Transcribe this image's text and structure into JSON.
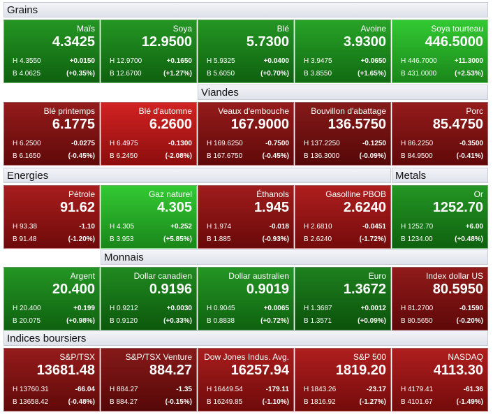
{
  "rows": [
    {
      "headers": [
        {
          "title": "Grains"
        }
      ],
      "tiles": [
        {
          "name": "Maïs",
          "last": "4.3425",
          "high": "H 4.3550",
          "change": "+0.0150",
          "low": "B 4.0625",
          "pct": "(+0.35%)",
          "color": "#168f16"
        },
        {
          "name": "Soya",
          "last": "12.9500",
          "high": "H 12.9700",
          "change": "+0.1650",
          "low": "B 12.6700",
          "pct": "(+1.27%)",
          "color": "#168f16"
        },
        {
          "name": "Blé",
          "last": "5.7300",
          "high": "H 5.9325",
          "change": "+0.0400",
          "low": "B 5.6050",
          "pct": "(+0.70%)",
          "color": "#168f16"
        },
        {
          "name": "Avoine",
          "last": "3.9300",
          "high": "H 3.9475",
          "change": "+0.0650",
          "low": "B 3.8550",
          "pct": "(+1.65%)",
          "color": "#1a9d1a"
        },
        {
          "name": "Soya tourteau",
          "last": "446.5000",
          "high": "H 446.7000",
          "change": "+11.3000",
          "low": "B 431.0000",
          "pct": "(+2.53%)",
          "color": "#26c626"
        }
      ]
    },
    {
      "headers": [
        {
          "title": "Viandes"
        }
      ],
      "tiles": [
        {
          "name": "Blé printemps",
          "last": "6.1775",
          "high": "H 6.2500",
          "change": "-0.0275",
          "low": "B 6.1650",
          "pct": "(-0.45%)",
          "color": "#8e0d0d"
        },
        {
          "name": "Blé d'automne",
          "last": "6.2600",
          "high": "H 6.4975",
          "change": "-0.1300",
          "low": "B 6.2450",
          "pct": "(-2.08%)",
          "color": "#cf1414"
        },
        {
          "name": "Veaux d'embouche",
          "last": "167.9000",
          "high": "H 169.6250",
          "change": "-0.7500",
          "low": "B 167.6750",
          "pct": "(-0.45%)",
          "color": "#8e0d0d"
        },
        {
          "name": "Bouvillon d'abattage",
          "last": "136.5750",
          "high": "H 137.2250",
          "change": "-0.1250",
          "low": "B 136.3000",
          "pct": "(-0.09%)",
          "color": "#7e0b0b"
        },
        {
          "name": "Porc",
          "last": "85.4750",
          "high": "H 86.2250",
          "change": "-0.3500",
          "low": "B 84.9500",
          "pct": "(-0.41%)",
          "color": "#8e0d0d"
        }
      ]
    },
    {
      "headers": [
        {
          "title": "Energies"
        },
        {
          "title": "Metals"
        }
      ],
      "tiles": [
        {
          "name": "Pétrole",
          "last": "91.62",
          "high": "H 93.38",
          "change": "-1.10",
          "low": "B 91.48",
          "pct": "(-1.20%)",
          "color": "#a30f0f"
        },
        {
          "name": "Gaz naturel",
          "last": "4.305",
          "high": "H 4.305",
          "change": "+0.252",
          "low": "B 3.953",
          "pct": "(+5.85%)",
          "color": "#26c626"
        },
        {
          "name": "Éthanols",
          "last": "1.945",
          "high": "H 1.974",
          "change": "-0.018",
          "low": "B 1.885",
          "pct": "(-0.93%)",
          "color": "#9a0e0e"
        },
        {
          "name": "Gasolline PBOB",
          "last": "2.6240",
          "high": "H 2.6810",
          "change": "-0.0451",
          "low": "B 2.6240",
          "pct": "(-1.72%)",
          "color": "#aa1010"
        },
        {
          "name": "Or",
          "last": "1252.70",
          "high": "H 1252.70",
          "change": "+6.00",
          "low": "B 1234.00",
          "pct": "(+0.48%)",
          "color": "#168f16"
        }
      ]
    },
    {
      "headers": [
        {
          "title": "Monnais"
        }
      ],
      "tiles": [
        {
          "name": "Argent",
          "last": "20.400",
          "high": "H 20.400",
          "change": "+0.199",
          "low": "B 20.075",
          "pct": "(+0.98%)",
          "color": "#168f16"
        },
        {
          "name": "Dollar canadien",
          "last": "0.9196",
          "high": "H 0.9212",
          "change": "+0.0030",
          "low": "B 0.9120",
          "pct": "(+0.33%)",
          "color": "#128212"
        },
        {
          "name": "Dollar australien",
          "last": "0.9019",
          "high": "H 0.9045",
          "change": "+0.0065",
          "low": "B 0.8838",
          "pct": "(+0.72%)",
          "color": "#168f16"
        },
        {
          "name": "Euro",
          "last": "1.3672",
          "high": "H 1.3687",
          "change": "+0.0012",
          "low": "B 1.3571",
          "pct": "(+0.09%)",
          "color": "#107810"
        },
        {
          "name": "Index dollar US",
          "last": "80.5950",
          "high": "H 81.2700",
          "change": "-0.1590",
          "low": "B 80.5650",
          "pct": "(-0.20%)",
          "color": "#8a0c0c"
        }
      ]
    },
    {
      "headers": [
        {
          "title": "Indices boursiers"
        }
      ],
      "tiles": [
        {
          "name": "S&P/TSX",
          "last": "13681.48",
          "high": "H 13760.31",
          "change": "-66.04",
          "low": "B 13658.42",
          "pct": "(-0.48%)",
          "color": "#8e0d0d"
        },
        {
          "name": "S&P/TSX Venture",
          "last": "884.27",
          "high": "H 884.27",
          "change": "-1.35",
          "low": "B 884.27",
          "pct": "(-0.15%)",
          "color": "#7e0b0b"
        },
        {
          "name": "Dow Jones Indus. Avg.",
          "last": "16257.94",
          "high": "H 16449.54",
          "change": "-179.11",
          "low": "B 16249.85",
          "pct": "(-1.10%)",
          "color": "#a30f0f"
        },
        {
          "name": "S&P 500",
          "last": "1819.20",
          "high": "H 1843.26",
          "change": "-23.17",
          "low": "B 1816.92",
          "pct": "(-1.27%)",
          "color": "#aa1010"
        },
        {
          "name": "NASDAQ",
          "last": "4113.30",
          "high": "H 4179.41",
          "change": "-61.36",
          "low": "B 4101.67",
          "pct": "(-1.49%)",
          "color": "#aa1010"
        }
      ]
    }
  ]
}
